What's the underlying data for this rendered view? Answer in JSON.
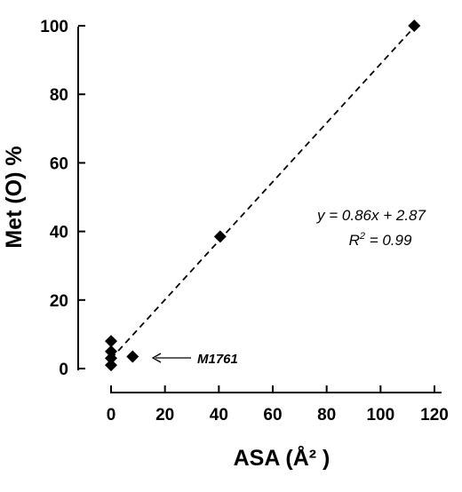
{
  "chart_data": {
    "type": "scatter",
    "xlabel": "ASA (Å² )",
    "ylabel": "Met (O) %",
    "xlim": [
      0,
      120
    ],
    "ylim": [
      0,
      100
    ],
    "x_ticks": [
      "0",
      "20",
      "40",
      "60",
      "80",
      "100",
      "120"
    ],
    "y_ticks": [
      "0",
      "20",
      "40",
      "60",
      "80",
      "100"
    ],
    "points": [
      {
        "x": 0,
        "y": 1
      },
      {
        "x": 0,
        "y": 3
      },
      {
        "x": 0,
        "y": 5
      },
      {
        "x": 0,
        "y": 8
      },
      {
        "x": 8,
        "y": 3.5
      },
      {
        "x": 40.5,
        "y": 38.5
      },
      {
        "x": 112.5,
        "y": 100
      }
    ],
    "trendline": {
      "slope": 0.86,
      "intercept": 2.87,
      "style": "dashed"
    },
    "equation_text": "y = 0.86x + 2.87",
    "r2_text_prefix": "R",
    "r2_text_sup": "2",
    "r2_text_suffix": " = 0.99",
    "annotation": {
      "label": "M1761",
      "x": 8,
      "y": 3.5
    }
  }
}
